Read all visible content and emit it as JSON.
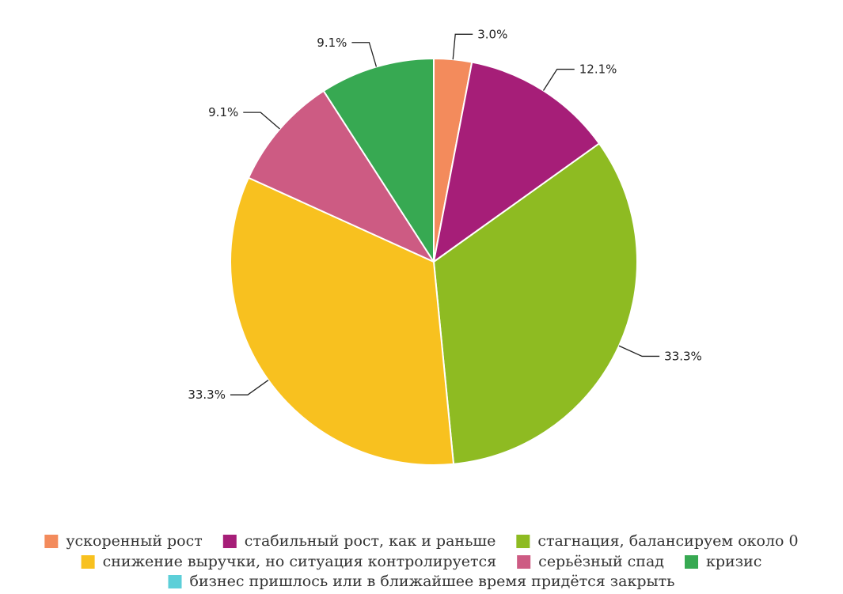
{
  "chart_data": {
    "type": "pie",
    "title": "",
    "start": "top",
    "direction": "clockwise",
    "legend_placement": "bottom",
    "series": [
      {
        "name": "ускоренный рост",
        "value": 3.0,
        "label": "3.0%",
        "color": "#f38b5c"
      },
      {
        "name": "стабильный рост, как и раньше",
        "value": 12.1,
        "label": "12.1%",
        "color": "#a61e78"
      },
      {
        "name": "стагнация, балансируем около 0",
        "value": 33.3,
        "label": "33.3%",
        "color": "#8ebb22"
      },
      {
        "name": "снижение выручки, но ситуация контролируется",
        "value": 33.3,
        "label": "33.3%",
        "color": "#f8c11f"
      },
      {
        "name": "серьёзный спад",
        "value": 9.1,
        "label": "9.1%",
        "color": "#cd5b83"
      },
      {
        "name": "кризис",
        "value": 9.1,
        "label": "9.1%",
        "color": "#37a952"
      },
      {
        "name": "бизнес пришлось или в ближайшее время придётся закрыть",
        "value": 0.0,
        "label": "",
        "color": "#5ccfd8"
      }
    ]
  }
}
